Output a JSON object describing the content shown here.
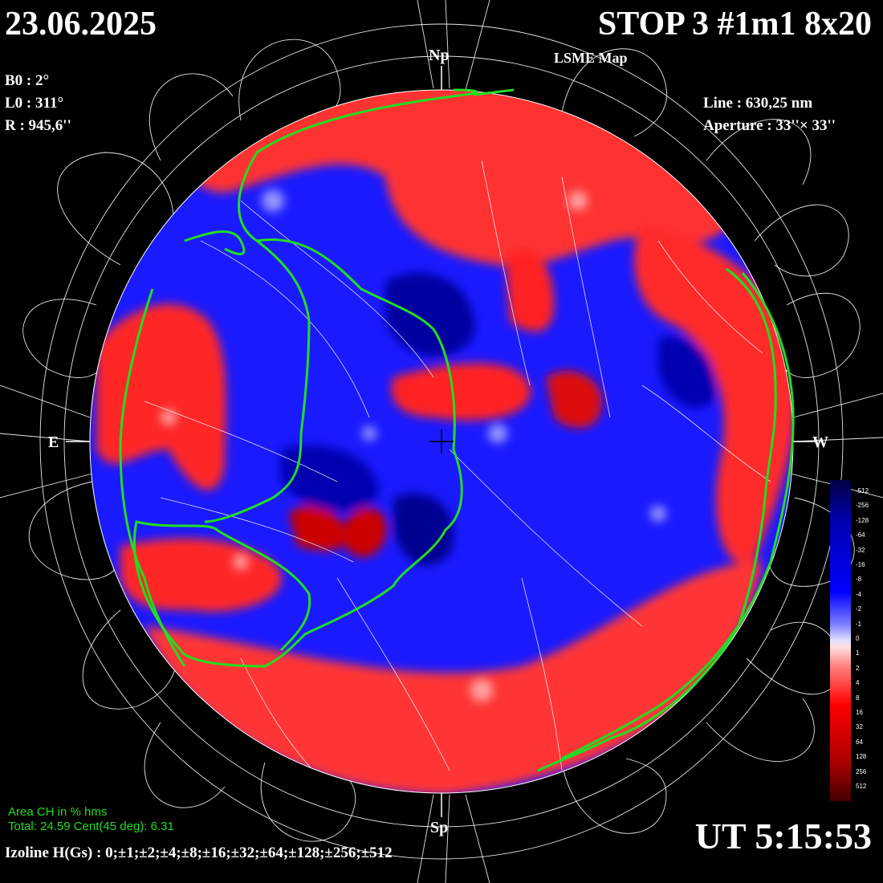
{
  "header": {
    "date": "23.06.2025",
    "title": "STOP 3 #1m1 8x20",
    "map_type": "LSME  Map"
  },
  "params_left": [
    "B0 : 2°",
    "L0 : 311°",
    "R  : 945,6''"
  ],
  "params_right": [
    "Line :  630,25 nm",
    "Aperture : 33''× 33''"
  ],
  "orientation": {
    "north": "Np",
    "south": "Sp",
    "east": "E",
    "west": "W"
  },
  "time": "UT 5:15:53",
  "izoline": "Izoline H(Gs) : 0;±1;±2;±4;±8;±16;±32;±64;±128;±256;±512",
  "coronal_hole": {
    "heading": "Area CH in % hms",
    "total": "Total: 24.59    Cent(45 deg): 6.31"
  },
  "colorbar": {
    "labels": [
      "-512",
      "-256",
      "-128",
      "-64",
      "-32",
      "-16",
      "-8",
      "-4",
      "-2",
      "-1",
      "0",
      "1",
      "2",
      "4",
      "8",
      "16",
      "32",
      "64",
      "128",
      "256",
      "512"
    ],
    "colors": {
      "deep_blue": "#000044",
      "blue": "#0000ff",
      "light_blue": "#c8c8ff",
      "white": "#ffffff",
      "light_red": "#ffc8c8",
      "red": "#ff0000",
      "deep_red": "#440000"
    }
  },
  "colors": {
    "background": "#000000",
    "text": "#ffffff",
    "coronal_hole_contour": "#22dd22",
    "field_lines": "#ffffff"
  }
}
